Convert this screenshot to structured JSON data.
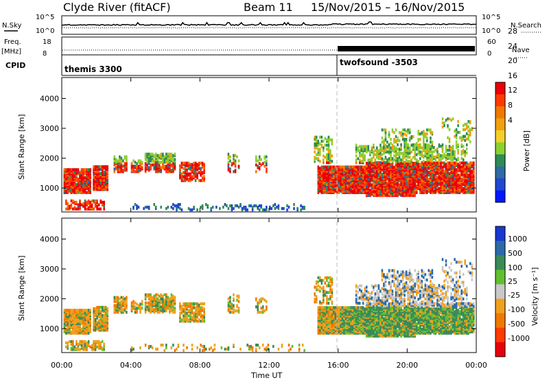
{
  "header": {
    "station": "Clyde River (fitACF)",
    "beam": "Beam 11",
    "date_range": "15/Nov/2015 – 16/Nov/2015"
  },
  "top_panels": {
    "nsky_label": "N.Sky",
    "nsky_ticks": [
      "10^5",
      "10^0"
    ],
    "nsearch_label": "N.Search",
    "nsearch_ticks": [
      "10^5",
      "10^0"
    ],
    "freq_label": "Freq.",
    "freq_unit": "[MHz]",
    "freq_ticks": [
      "18",
      "8"
    ],
    "nave_label": "Nave",
    "nave_ticks": [
      "60",
      "0"
    ],
    "cpid_label": "CPID",
    "cpid_segments": [
      {
        "label": "themis 3300",
        "start_hour": 0
      },
      {
        "label": "twofsound -3503",
        "start_hour": 16
      }
    ]
  },
  "chart_data": [
    {
      "type": "heatmap",
      "name": "power",
      "ylabel": "Slant Range [km]",
      "xlabel": "Time UT",
      "x_ticks": [
        "00:00",
        "04:00",
        "08:00",
        "12:00",
        "16:00",
        "20:00",
        "00:00"
      ],
      "y_ticks": [
        1000,
        2000,
        3000,
        4000
      ],
      "ylim": [
        200,
        4700
      ],
      "xlim_hours": [
        0,
        24
      ],
      "colorbar_label": "Power [dB]",
      "colorbar_ticks": [
        "28",
        "24",
        "20",
        "16",
        "12",
        "8",
        "4"
      ],
      "colorbar_colors": [
        "#e8000b",
        "#ff3b00",
        "#f07800",
        "#f0a010",
        "#f2d02a",
        "#8cd030",
        "#2e8b57",
        "#2e6ba0",
        "#2048d0",
        "#0018ff"
      ]
    },
    {
      "type": "heatmap",
      "name": "velocity",
      "ylabel": "Slant Range [km]",
      "xlabel": "Time UT",
      "x_ticks": [
        "00:00",
        "04:00",
        "08:00",
        "12:00",
        "16:00",
        "20:00",
        "00:00"
      ],
      "y_ticks": [
        1000,
        2000,
        3000,
        4000
      ],
      "ylim": [
        200,
        4700
      ],
      "xlim_hours": [
        0,
        24
      ],
      "colorbar_label": "Velocity [m s⁻¹]",
      "colorbar_ticks": [
        "1000",
        "500",
        "100",
        "25",
        "-25",
        "-100",
        "-500",
        "-1000"
      ],
      "colorbar_colors": [
        "#1838d0",
        "#2c6aa8",
        "#3a8a5a",
        "#62c030",
        "#c8c8c8",
        "#f0a020",
        "#f07800",
        "#ff3b00",
        "#e8000b"
      ]
    }
  ],
  "x_axis_title": "Time UT"
}
